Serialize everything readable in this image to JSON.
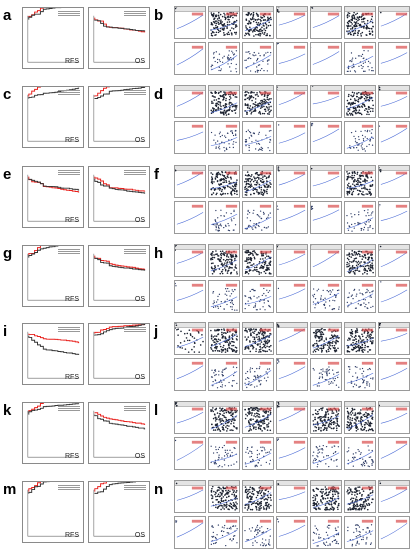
{
  "rows": [
    {
      "km_letter": "a",
      "km_left_label": "RFS",
      "km_right_label": "OS",
      "scatter_letter": "b"
    },
    {
      "km_letter": "c",
      "km_left_label": "RFS",
      "km_right_label": "OS",
      "scatter_letter": "d"
    },
    {
      "km_letter": "e",
      "km_left_label": "RFS",
      "km_right_label": "OS",
      "scatter_letter": "f"
    },
    {
      "km_letter": "g",
      "km_left_label": "RFS",
      "km_right_label": "OS",
      "scatter_letter": "h"
    },
    {
      "km_letter": "i",
      "km_left_label": "RFS",
      "km_right_label": "OS",
      "scatter_letter": "j"
    },
    {
      "km_letter": "k",
      "km_left_label": "RFS",
      "km_right_label": "OS",
      "scatter_letter": "l"
    },
    {
      "km_letter": "m",
      "km_left_label": "RFS",
      "km_right_label": "OS",
      "scatter_letter": "n"
    }
  ],
  "colors": {
    "high": "#e8211d",
    "low": "#333333",
    "scatter_top": "#1c2230",
    "scatter_bottom": "#2f3d66",
    "fit_line": "#4b6bd6"
  }
}
